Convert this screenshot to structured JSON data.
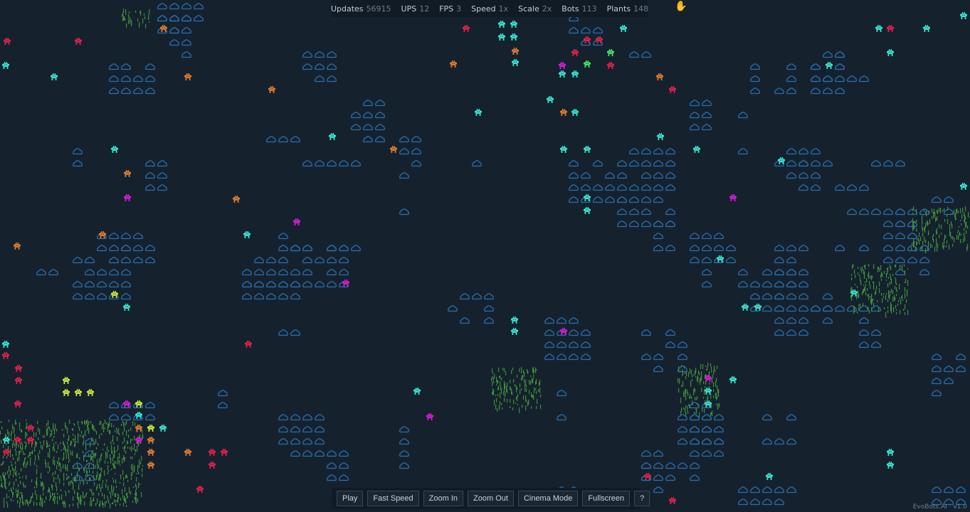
{
  "stats": {
    "updates_label": "Updates",
    "updates_value": "56915",
    "ups_label": "UPS",
    "ups_value": "12",
    "fps_label": "FPS",
    "fps_value": "3",
    "speed_label": "Speed",
    "speed_value": "1x",
    "scale_label": "Scale",
    "scale_value": "2x",
    "bots_label": "Bots",
    "bots_value": "113",
    "plants_label": "Plants",
    "plants_value": "148"
  },
  "controls": {
    "play": "Play",
    "fast_speed": "Fast Speed",
    "zoom_in": "Zoom In",
    "zoom_out": "Zoom Out",
    "cinema_mode": "Cinema Mode",
    "fullscreen": "Fullscreen",
    "help": "?"
  },
  "version": "EvoBots.AI · v1.0",
  "cursor_icon": "hand-cursor-icon",
  "colors": {
    "background": "#15222e",
    "rock": "#2a6fb0",
    "plant": "#3f8a3a",
    "bot_cyan": "#35e6d2",
    "bot_orange": "#e07a2a",
    "bot_red": "#e0204a",
    "bot_magenta": "#d81ad8",
    "bot_lime": "#c8e83a",
    "bot_green": "#4be060"
  }
}
